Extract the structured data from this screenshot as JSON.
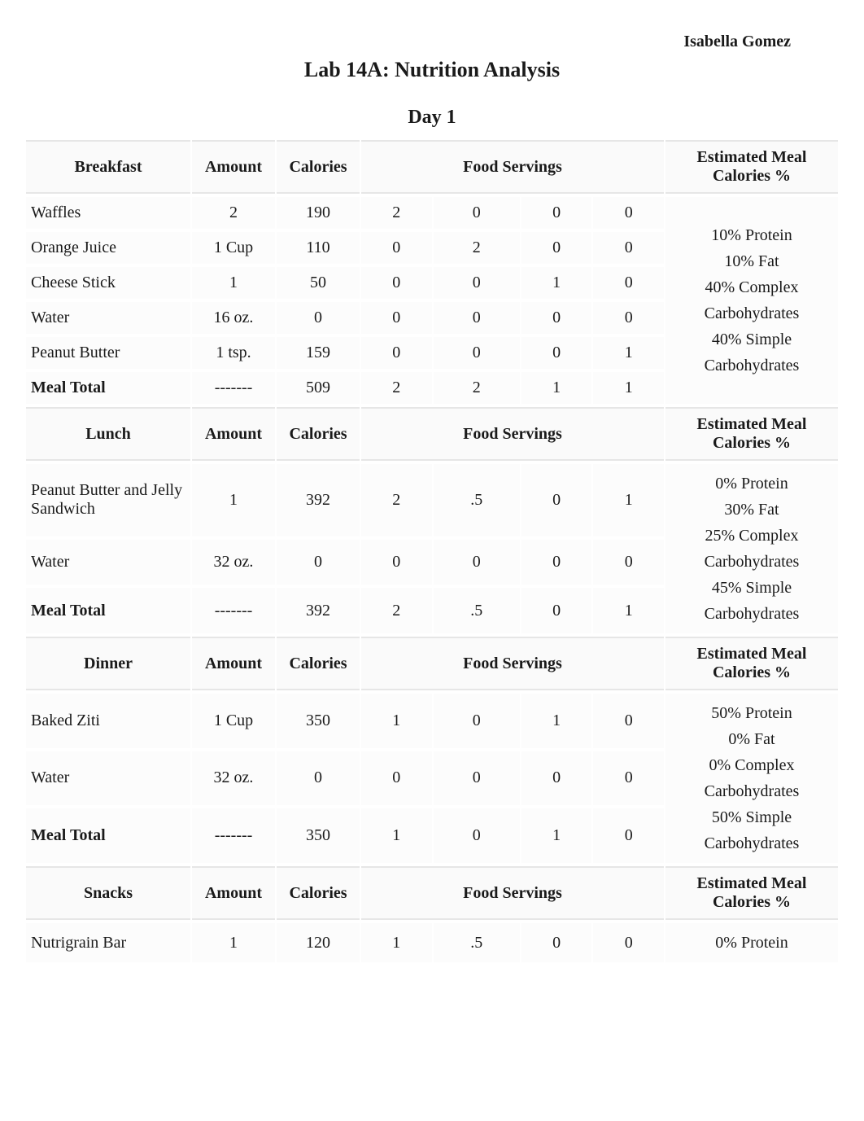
{
  "student_name": "Isabella Gomez",
  "lab_title": "Lab 14A: Nutrition Analysis",
  "day_title": "Day 1",
  "columns": {
    "amount": "Amount",
    "calories": "Calories",
    "food_servings": "Food Servings",
    "est": "Estimated Meal Calories %"
  },
  "meals": [
    {
      "name": "Breakfast",
      "items": [
        {
          "food": "Waffles",
          "amount": "2",
          "cal": "190",
          "s1": "2",
          "s2": "0",
          "s3": "0",
          "s4": "0"
        },
        {
          "food": "Orange Juice",
          "amount": "1 Cup",
          "cal": "110",
          "s1": "0",
          "s2": "2",
          "s3": "0",
          "s4": "0"
        },
        {
          "food": "Cheese Stick",
          "amount": "1",
          "cal": "50",
          "s1": "0",
          "s2": "0",
          "s3": "1",
          "s4": "0"
        },
        {
          "food": "Water",
          "amount": "16 oz.",
          "cal": "0",
          "s1": "0",
          "s2": "0",
          "s3": "0",
          "s4": "0"
        },
        {
          "food": "Peanut Butter",
          "amount": "1 tsp.",
          "cal": "159",
          "s1": "0",
          "s2": "0",
          "s3": "0",
          "s4": "1"
        }
      ],
      "total": {
        "label": "Meal Total",
        "amount": "-------",
        "cal": "509",
        "s1": "2",
        "s2": "2",
        "s3": "1",
        "s4": "1"
      },
      "est_lines": [
        "10% Protein",
        "10% Fat",
        "40% Complex",
        "Carbohydrates",
        "40% Simple",
        "Carbohydrates"
      ]
    },
    {
      "name": "Lunch",
      "items": [
        {
          "food": "Peanut Butter and Jelly Sandwich",
          "amount": "1",
          "cal": "392",
          "s1": "2",
          "s2": ".5",
          "s3": "0",
          "s4": "1"
        },
        {
          "food": "Water",
          "amount": "32 oz.",
          "cal": "0",
          "s1": "0",
          "s2": "0",
          "s3": "0",
          "s4": "0"
        }
      ],
      "total": {
        "label": "Meal Total",
        "amount": "-------",
        "cal": "392",
        "s1": "2",
        "s2": ".5",
        "s3": "0",
        "s4": "1"
      },
      "est_lines": [
        "0% Protein",
        "30% Fat",
        "25% Complex",
        "Carbohydrates",
        "45% Simple",
        "Carbohydrates"
      ]
    },
    {
      "name": "Dinner",
      "items": [
        {
          "food": "Baked Ziti",
          "amount": "1 Cup",
          "cal": "350",
          "s1": "1",
          "s2": "0",
          "s3": "1",
          "s4": "0"
        },
        {
          "food": "Water",
          "amount": "32 oz.",
          "cal": "0",
          "s1": "0",
          "s2": "0",
          "s3": "0",
          "s4": "0"
        }
      ],
      "total": {
        "label": "Meal Total",
        "amount": "-------",
        "cal": "350",
        "s1": "1",
        "s2": "0",
        "s3": "1",
        "s4": "0"
      },
      "est_lines": [
        "50% Protein",
        "0% Fat",
        "0% Complex",
        "Carbohydrates",
        "50% Simple",
        "Carbohydrates"
      ]
    },
    {
      "name": "Snacks",
      "items": [
        {
          "food": "Nutrigrain Bar",
          "amount": "1",
          "cal": "120",
          "s1": "1",
          "s2": ".5",
          "s3": "0",
          "s4": "0"
        }
      ],
      "total": null,
      "est_lines": [
        "0% Protein"
      ]
    }
  ]
}
